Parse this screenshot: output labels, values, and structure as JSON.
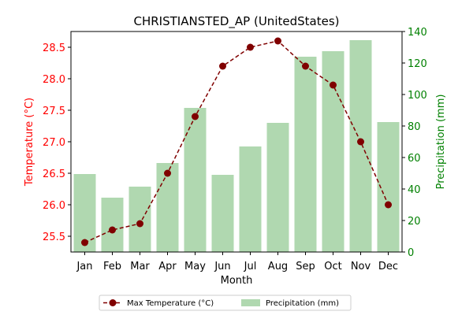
{
  "chart_data": {
    "type": "bar+line",
    "title": "CHRISTIANSTED_AP (UnitedStates)",
    "xlabel": "Month",
    "ylabel_left": "Temperature (°C)",
    "ylabel_right": "Precipitation (mm)",
    "categories": [
      "Jan",
      "Feb",
      "Mar",
      "Apr",
      "May",
      "Jun",
      "Jul",
      "Aug",
      "Sep",
      "Oct",
      "Nov",
      "Dec"
    ],
    "ylim_left": [
      25.25,
      28.75
    ],
    "ylim_right": [
      0,
      140
    ],
    "yticks_left": [
      "25.5",
      "26.0",
      "26.5",
      "27.0",
      "27.5",
      "28.0",
      "28.5"
    ],
    "yticks_right": [
      "0",
      "20",
      "40",
      "60",
      "80",
      "100",
      "120",
      "140"
    ],
    "grid": false,
    "legend_position": "bottom-center",
    "series": [
      {
        "name": "Max Temperature (°C)",
        "type": "line",
        "axis": "left",
        "color": "#800000",
        "values": [
          25.4,
          25.6,
          25.7,
          26.5,
          27.4,
          28.2,
          28.5,
          28.6,
          28.2,
          27.9,
          27.0,
          26.0
        ]
      },
      {
        "name": "Precipitation (mm)",
        "type": "bar",
        "axis": "right",
        "color": "#b0d8b0",
        "values": [
          49.5,
          34.5,
          41.5,
          56.5,
          91.5,
          49,
          67,
          82,
          124,
          127.5,
          134.5,
          82.5
        ]
      }
    ]
  }
}
